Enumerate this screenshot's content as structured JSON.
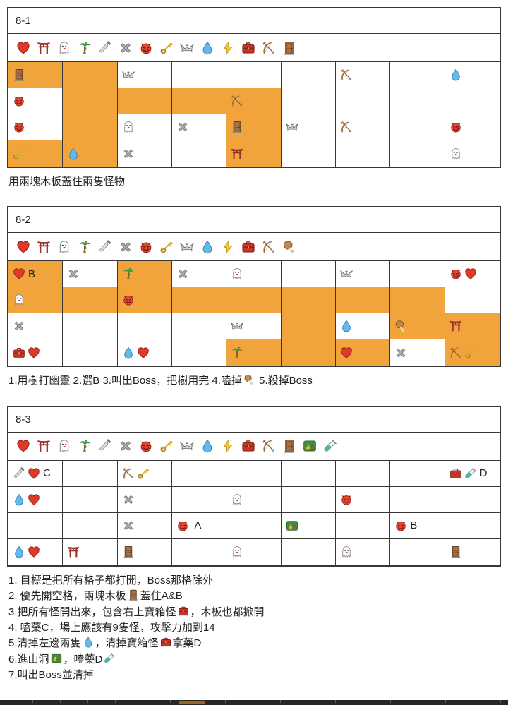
{
  "page": {
    "background": "#ffffff",
    "highlight_color": "#f2a43c",
    "border_color": "#383838"
  },
  "icon_meanings": {
    "heart": "❤ red heart",
    "torii": "⛩ shrine gate",
    "ghost": "👻 ghost",
    "palm": "🌴 palm tree",
    "knife": "🔪 knife",
    "cross": "❌ cross mark",
    "devil": "👹 red devil face",
    "key": "🔑 key",
    "bat": "🦇 bat",
    "droplet": "💧 water drop",
    "lightning": "⚡ lightning bolt",
    "toolbox": "🧰 red chest/toolbox",
    "bow": "🏹 bow and arrow",
    "door": "🚪 wooden door/plank",
    "park": "🏞 mountain cave",
    "testtube": "🧪 test tube",
    "drumstick": "🍗 poultry leg"
  },
  "tables": [
    {
      "id": "8-1",
      "title": "8-1",
      "legend": [
        "heart",
        "torii",
        "ghost",
        "palm",
        "knife",
        "cross",
        "devil",
        "key",
        "bat",
        "droplet",
        "lightning",
        "toolbox",
        "bow",
        "door"
      ],
      "rows": [
        [
          {
            "c": [
              "icon:door"
            ],
            "hl": 1
          },
          {
            "hl": 1
          },
          {
            "c": [
              "icon:bat"
            ]
          },
          {},
          {},
          {},
          {
            "c": [
              "icon:bow"
            ]
          },
          {},
          {
            "c": [
              "icon:droplet"
            ]
          }
        ],
        [
          {
            "c": [
              "icon:devil"
            ]
          },
          {
            "hl": 1
          },
          {
            "hl": 1
          },
          {
            "hl": 1
          },
          {
            "c": [
              "icon:bow"
            ],
            "hl": 1
          },
          {},
          {},
          {},
          {}
        ],
        [
          {
            "c": [
              "icon:devil"
            ]
          },
          {
            "hl": 1
          },
          {
            "c": [
              "icon:ghost"
            ]
          },
          {
            "c": [
              "icon:cross"
            ]
          },
          {
            "c": [
              "icon:door"
            ],
            "hl": 1
          },
          {
            "c": [
              "icon:bat"
            ]
          },
          {
            "c": [
              "icon:bow"
            ]
          },
          {},
          {
            "c": [
              "icon:devil"
            ]
          }
        ],
        [
          {
            "c": [
              "icon:key"
            ],
            "hl": 1
          },
          {
            "c": [
              "icon:droplet"
            ],
            "hl": 1
          },
          {
            "c": [
              "icon:cross"
            ]
          },
          {},
          {
            "c": [
              "icon:torii"
            ],
            "hl": 1
          },
          {},
          {},
          {},
          {
            "c": [
              "icon:ghost"
            ]
          }
        ]
      ],
      "notes": [
        [
          "用兩塊木板蓋住兩隻怪物"
        ]
      ]
    },
    {
      "id": "8-2",
      "title": "8-2",
      "legend": [
        "heart",
        "torii",
        "ghost",
        "palm",
        "knife",
        "cross",
        "devil",
        "key",
        "bat",
        "droplet",
        "lightning",
        "toolbox",
        "bow",
        "drumstick"
      ],
      "rows": [
        [
          {
            "c": [
              "icon:heart",
              "B"
            ],
            "hl": 1
          },
          {
            "c": [
              "icon:cross"
            ]
          },
          {
            "c": [
              "icon:palm"
            ],
            "hl": 1
          },
          {
            "c": [
              "icon:cross"
            ]
          },
          {
            "c": [
              "icon:ghost"
            ]
          },
          {},
          {
            "c": [
              "icon:bat"
            ]
          },
          {},
          {
            "c": [
              "icon:devil",
              "icon:heart"
            ]
          }
        ],
        [
          {
            "c": [
              "icon:ghost"
            ],
            "hl": 1
          },
          {
            "hl": 1
          },
          {
            "c": [
              "icon:devil"
            ],
            "hl": 1
          },
          {
            "hl": 1
          },
          {
            "hl": 1
          },
          {
            "hl": 1
          },
          {
            "hl": 1
          },
          {
            "hl": 1
          },
          {}
        ],
        [
          {
            "c": [
              "icon:cross"
            ]
          },
          {},
          {},
          {},
          {
            "c": [
              "icon:bat"
            ]
          },
          {
            "hl": 1
          },
          {
            "c": [
              "icon:droplet"
            ]
          },
          {
            "c": [
              "icon:drumstick"
            ],
            "hl": 1
          },
          {
            "c": [
              "icon:torii"
            ],
            "hl": 1
          }
        ],
        [
          {
            "c": [
              "icon:toolbox",
              "icon:heart"
            ]
          },
          {},
          {
            "c": [
              "icon:droplet",
              "icon:heart"
            ]
          },
          {},
          {
            "c": [
              "icon:palm"
            ],
            "hl": 1
          },
          {
            "hl": 1
          },
          {
            "c": [
              "icon:heart"
            ],
            "hl": 1
          },
          {
            "c": [
              "icon:cross"
            ]
          },
          {
            "c": [
              "icon:bow",
              "icon:key"
            ],
            "hl": 1
          }
        ]
      ],
      "notes": [
        [
          "1.用樹打幽靈 2.選B 3.叫出Boss，把樹用完 4.嗑掉",
          "icon:drumstick",
          " 5.殺掉Boss"
        ]
      ]
    },
    {
      "id": "8-3",
      "title": "8-3",
      "legend": [
        "heart",
        "torii",
        "ghost",
        "palm",
        "knife",
        "cross",
        "devil",
        "key",
        "bat",
        "droplet",
        "lightning",
        "toolbox",
        "bow",
        "door",
        "park",
        "testtube"
      ],
      "rows": [
        [
          {
            "c": [
              "icon:knife",
              "icon:heart",
              "C"
            ]
          },
          {},
          {
            "c": [
              "icon:bow",
              "icon:key"
            ]
          },
          {},
          {},
          {},
          {},
          {},
          {
            "c": [
              "icon:toolbox",
              "icon:testtube",
              "D"
            ]
          }
        ],
        [
          {
            "c": [
              "icon:droplet",
              "icon:heart"
            ]
          },
          {},
          {
            "c": [
              "icon:cross"
            ]
          },
          {},
          {
            "c": [
              "icon:ghost"
            ]
          },
          {},
          {
            "c": [
              "icon:devil"
            ]
          },
          {},
          {}
        ],
        [
          {},
          {},
          {
            "c": [
              "icon:cross"
            ]
          },
          {
            "c": [
              "icon:devil",
              " A"
            ]
          },
          {},
          {
            "c": [
              "icon:park"
            ]
          },
          {},
          {
            "c": [
              "icon:devil",
              "B"
            ]
          },
          {}
        ],
        [
          {
            "c": [
              "icon:droplet",
              "icon:heart"
            ]
          },
          {
            "c": [
              "icon:torii"
            ]
          },
          {
            "c": [
              "icon:door"
            ]
          },
          {},
          {
            "c": [
              "icon:ghost"
            ]
          },
          {},
          {
            "c": [
              "icon:ghost"
            ]
          },
          {},
          {
            "c": [
              "icon:door"
            ]
          }
        ]
      ],
      "notes": [
        [
          "1. 目標是把所有格子都打開，Boss那格除外"
        ],
        [
          "2. 優先開空格，兩塊木板",
          "icon:door",
          "蓋住A&B"
        ],
        [
          "3.把所有怪開出來，包含右上寶箱怪",
          "icon:toolbox",
          "，木板也都掀開"
        ],
        [
          "4. 嗑藥C，場上應該有9隻怪，攻擊力加到14"
        ],
        [
          "5.清掉左邊兩隻",
          "icon:droplet",
          "，清掉寶箱怪",
          "icon:toolbox",
          "拿藥D"
        ],
        [
          "6.進山洞",
          "icon:park",
          "，嗑藥D",
          "icon:testtube"
        ],
        [
          "7.叫出Boss並清掉"
        ]
      ]
    }
  ],
  "bottom_partial_table": {
    "visible": true
  }
}
